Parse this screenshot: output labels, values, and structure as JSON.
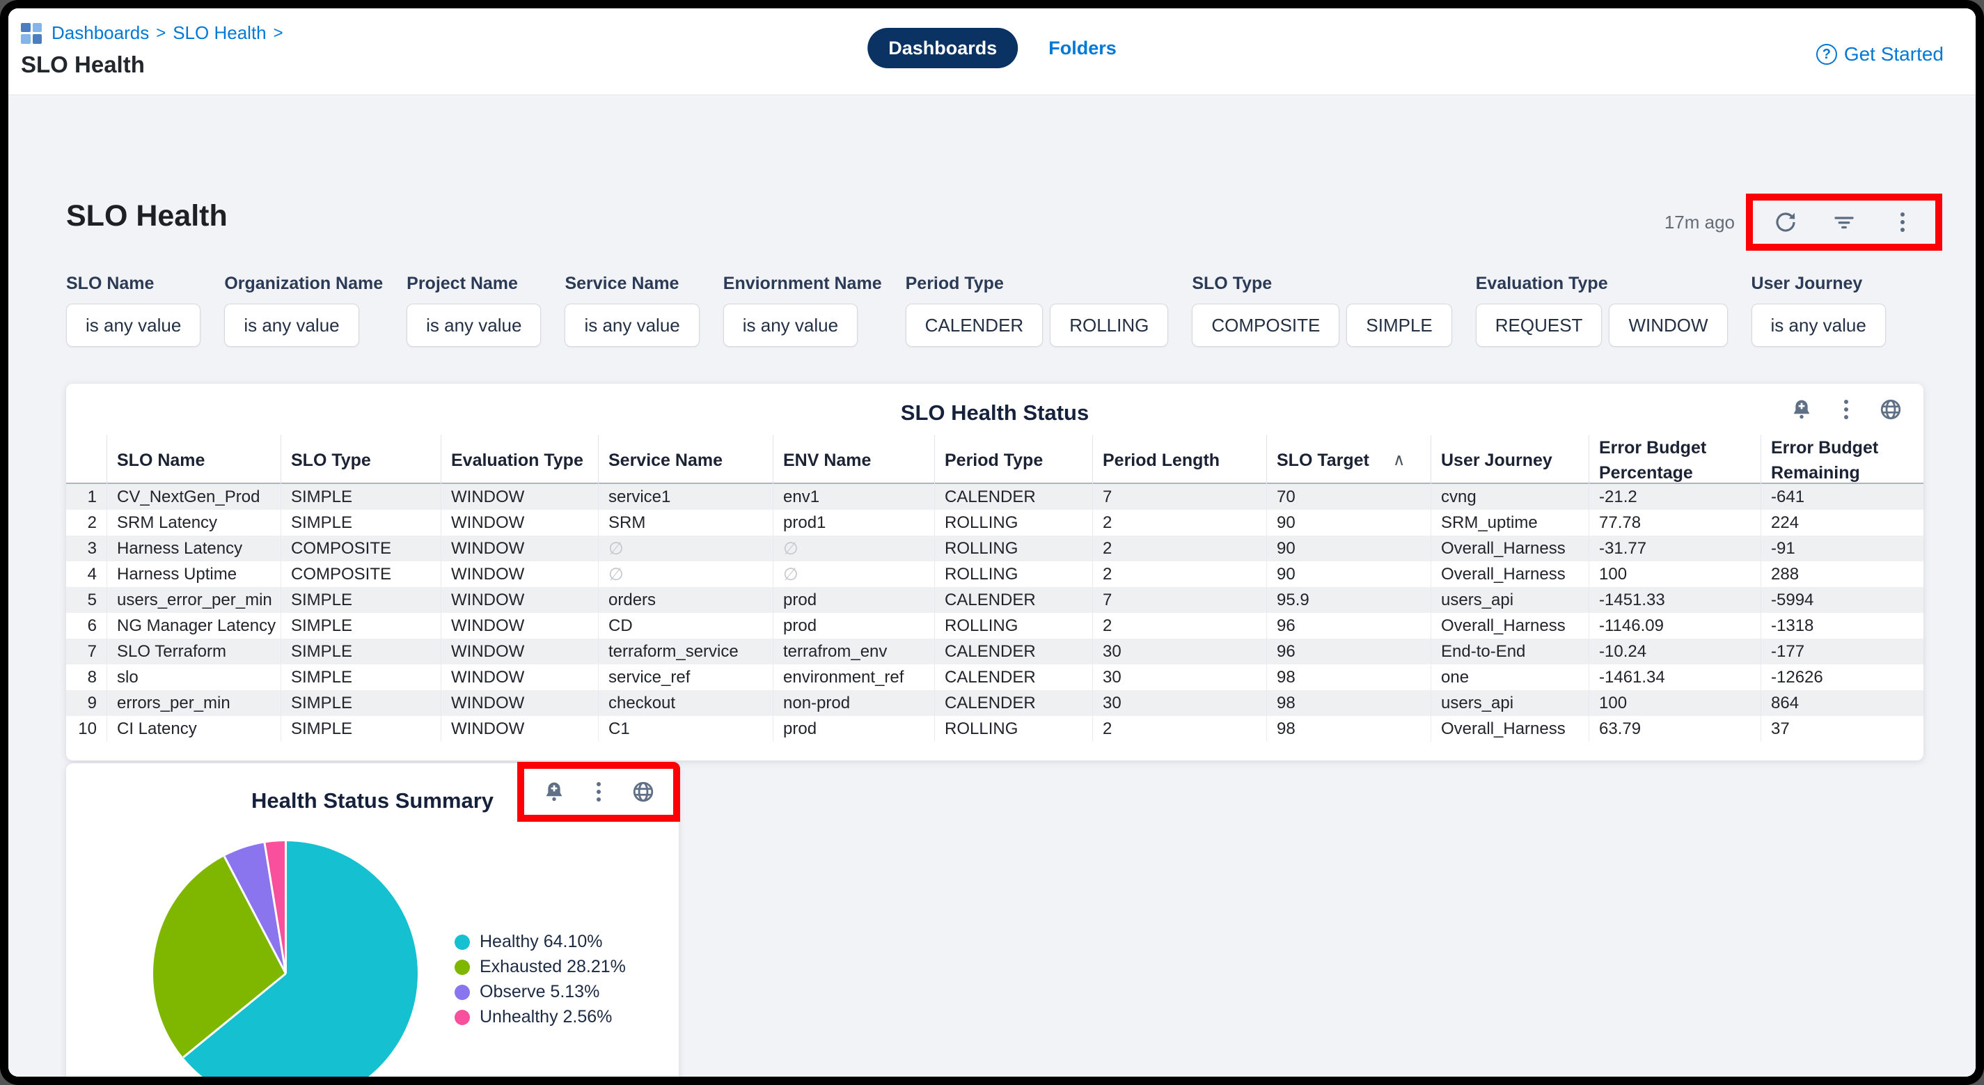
{
  "header": {
    "breadcrumb": {
      "items": [
        "Dashboards",
        "SLO Health"
      ],
      "separator": ">"
    },
    "page_title": "SLO Health",
    "tabs": [
      {
        "label": "Dashboards",
        "active": true
      },
      {
        "label": "Folders",
        "active": false
      }
    ],
    "get_started_label": "Get Started"
  },
  "toolbar": {
    "dashboard_title": "SLO Health",
    "updated": "17m ago",
    "icons": [
      "refresh-icon",
      "filter-icon",
      "kebab-menu-icon"
    ]
  },
  "filters": [
    {
      "label": "SLO Name",
      "controls": [
        "is any value"
      ]
    },
    {
      "label": "Organization Name",
      "controls": [
        "is any value"
      ]
    },
    {
      "label": "Project Name",
      "controls": [
        "is any value"
      ]
    },
    {
      "label": "Service Name",
      "controls": [
        "is any value"
      ]
    },
    {
      "label": "Enviornment Name",
      "controls": [
        "is any value"
      ]
    },
    {
      "label": "Period Type",
      "controls": [
        "CALENDER",
        "ROLLING"
      ]
    },
    {
      "label": "SLO Type",
      "controls": [
        "COMPOSITE",
        "SIMPLE"
      ]
    },
    {
      "label": "Evaluation Type",
      "controls": [
        "REQUEST",
        "WINDOW"
      ]
    },
    {
      "label": "User Journey",
      "controls": [
        "is any value"
      ]
    }
  ],
  "table": {
    "title": "SLO Health Status",
    "icons": [
      "bell-plus-icon",
      "kebab-menu-icon",
      "globe-icon"
    ],
    "columns": [
      {
        "label": ""
      },
      {
        "label": "SLO Name"
      },
      {
        "label": "SLO Type"
      },
      {
        "label": "Evaluation Type"
      },
      {
        "label": "Service Name"
      },
      {
        "label": "ENV Name"
      },
      {
        "label": "Period Type"
      },
      {
        "label": "Period Length"
      },
      {
        "label": "SLO Target",
        "sort": "asc"
      },
      {
        "label": "User Journey"
      },
      {
        "label": "Error Budget\nPercentage"
      },
      {
        "label": "Error Budget\nRemaining"
      }
    ],
    "rows": [
      [
        "1",
        "CV_NextGen_Prod",
        "SIMPLE",
        "WINDOW",
        "service1",
        "env1",
        "CALENDER",
        "7",
        "70",
        "cvng",
        "-21.2",
        "-641"
      ],
      [
        "2",
        "SRM Latency",
        "SIMPLE",
        "WINDOW",
        "SRM",
        "prod1",
        "ROLLING",
        "2",
        "90",
        "SRM_uptime",
        "77.78",
        "224"
      ],
      [
        "3",
        "Harness Latency",
        "COMPOSITE",
        "WINDOW",
        "∅",
        "∅",
        "ROLLING",
        "2",
        "90",
        "Overall_Harness",
        "-31.77",
        "-91"
      ],
      [
        "4",
        "Harness Uptime",
        "COMPOSITE",
        "WINDOW",
        "∅",
        "∅",
        "ROLLING",
        "2",
        "90",
        "Overall_Harness",
        "100",
        "288"
      ],
      [
        "5",
        "users_error_per_min",
        "SIMPLE",
        "WINDOW",
        "orders",
        "prod",
        "CALENDER",
        "7",
        "95.9",
        "users_api",
        "-1451.33",
        "-5994"
      ],
      [
        "6",
        "NG Manager Latency",
        "SIMPLE",
        "WINDOW",
        "CD",
        "prod",
        "ROLLING",
        "2",
        "96",
        "Overall_Harness",
        "-1146.09",
        "-1318"
      ],
      [
        "7",
        "SLO Terraform",
        "SIMPLE",
        "WINDOW",
        "terraform_service",
        "terrafrom_env",
        "CALENDER",
        "30",
        "96",
        "End-to-End",
        "-10.24",
        "-177"
      ],
      [
        "8",
        "slo",
        "SIMPLE",
        "WINDOW",
        "service_ref",
        "environment_ref",
        "CALENDER",
        "30",
        "98",
        "one",
        "-1461.34",
        "-12626"
      ],
      [
        "9",
        "errors_per_min",
        "SIMPLE",
        "WINDOW",
        "checkout",
        "non-prod",
        "CALENDER",
        "30",
        "98",
        "users_api",
        "100",
        "864"
      ],
      [
        "10",
        "CI Latency",
        "SIMPLE",
        "WINDOW",
        "C1",
        "prod",
        "ROLLING",
        "2",
        "98",
        "Overall_Harness",
        "63.79",
        "37"
      ]
    ]
  },
  "pie_card": {
    "title": "Health Status Summary",
    "icons": [
      "bell-plus-icon",
      "kebab-menu-icon",
      "globe-icon"
    ]
  },
  "chart_data": {
    "type": "pie",
    "title": "Health Status Summary",
    "labels": [
      "Healthy",
      "Exhausted",
      "Observe",
      "Unhealthy"
    ],
    "values": [
      64.1,
      28.21,
      5.13,
      2.56
    ],
    "colors": [
      "#15c0d0",
      "#7eb600",
      "#8a75ee",
      "#f9509e"
    ],
    "legend_items": [
      "Healthy 64.10%",
      "Exhausted 28.21%",
      "Observe 5.13%",
      "Unhealthy 2.56%"
    ],
    "legend_position": "right",
    "start_angle_deg": 0,
    "direction": "clockwise"
  },
  "annotations": {
    "color": "#fb0105"
  }
}
